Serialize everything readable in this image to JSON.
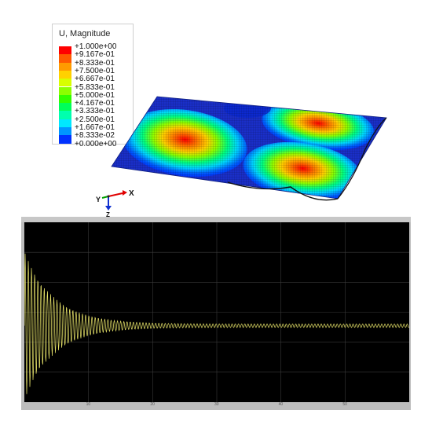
{
  "legend": {
    "title": "U, Magnitude",
    "labels": [
      "+1.000e+00",
      "+9.167e-01",
      "+8.333e-01",
      "+7.500e-01",
      "+6.667e-01",
      "+5.833e-01",
      "+5.000e-01",
      "+4.167e-01",
      "+3.333e-01",
      "+2.500e-01",
      "+1.667e-01",
      "+8.333e-02",
      "+0.000e+00"
    ],
    "colors": [
      "#ff0000",
      "#ff5a00",
      "#ff9b00",
      "#ffd100",
      "#d8ff00",
      "#8cff00",
      "#31ff00",
      "#00ff5a",
      "#00ffae",
      "#00e8ff",
      "#0096ff",
      "#0032ff"
    ]
  },
  "triad": {
    "x_label": "X",
    "y_label": "Y",
    "z_label": "Z"
  },
  "scope": {
    "trace_color": "#e8e46a",
    "grid_color": "#3a3a3a",
    "x_tick_labels": [
      "10",
      "20",
      "30",
      "40",
      "50"
    ]
  }
}
